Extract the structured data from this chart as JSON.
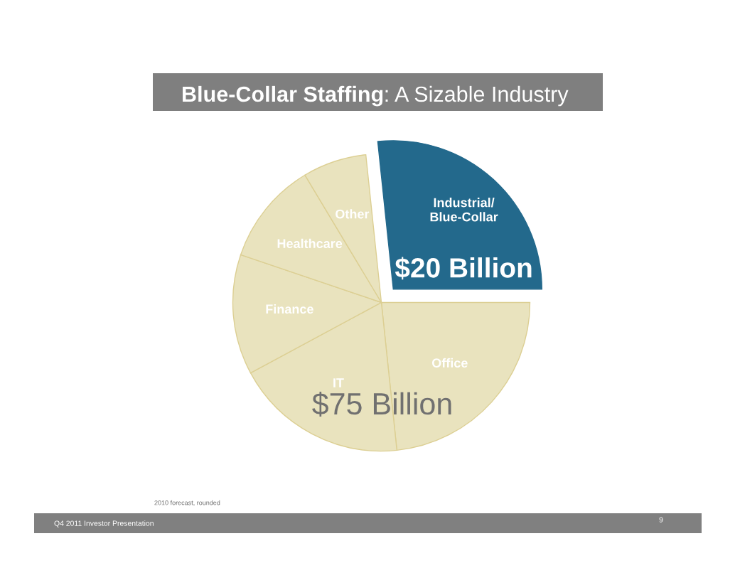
{
  "chart_data": {
    "type": "pie",
    "title": "Blue-Collar Staffing: A Sizable Industry",
    "categories": [
      "Industrial/\nBlue-Collar",
      "Office",
      "IT",
      "Finance",
      "Healthcare",
      "Other"
    ],
    "values": [
      20,
      17.5,
      14.1,
      9.8,
      8.4,
      5.2
    ],
    "colors": [
      "#23698c",
      "#e9e3be",
      "#e9e3be",
      "#e9e3be",
      "#e9e3be",
      "#e9e3be"
    ],
    "value_labels": [
      "$20 Billion",
      null,
      null,
      null,
      null,
      null
    ],
    "annotations": [
      "$75 Billion",
      "2010 forecast, rounded",
      "Q4 2011 Investor Presentation",
      "9"
    ]
  }
}
